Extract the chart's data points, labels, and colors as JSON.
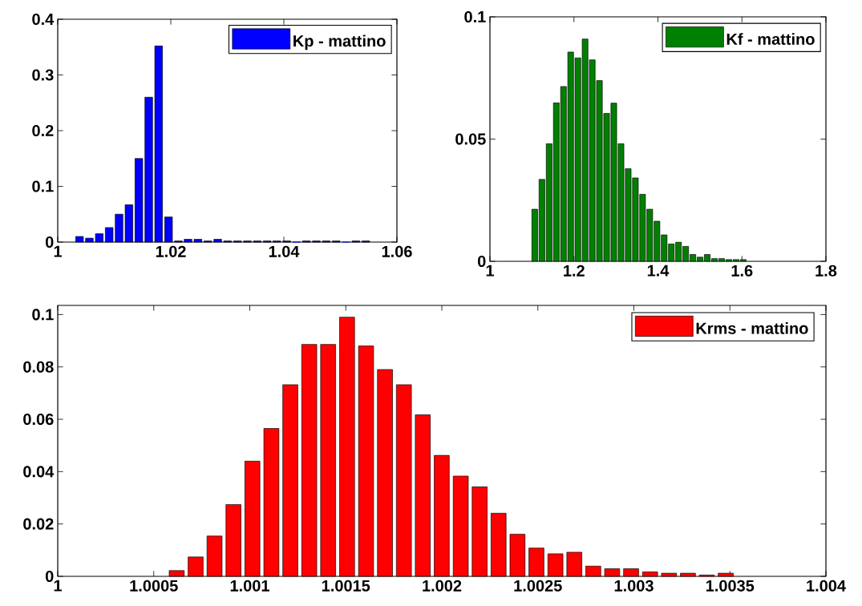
{
  "chart_data": [
    {
      "type": "histogram",
      "bins": [
        1.003,
        1.0047,
        1.0065,
        1.0082,
        1.01,
        1.0117,
        1.0135,
        1.0152,
        1.017,
        1.0187,
        1.0205,
        1.0222,
        1.0239,
        1.0257,
        1.0274,
        1.0292,
        1.0309,
        1.0327,
        1.0344,
        1.0362,
        1.0379,
        1.0396,
        1.0414,
        1.0431,
        1.0449,
        1.0466,
        1.0484,
        1.0501,
        1.0519,
        1.0536,
        1.0554
      ],
      "series": [
        {
          "name": "Kp - mattino",
          "color": "#0000ff",
          "values": [
            0.01,
            0.007,
            0.015,
            0.026,
            0.05,
            0.067,
            0.15,
            0.26,
            0.352,
            0.045,
            0.002,
            0.005,
            0.005,
            0.002,
            0.005,
            0.002,
            0.002,
            0.002,
            0.002,
            0.002,
            0.002,
            0.002,
            0,
            0.002,
            0.002,
            0.002,
            0.002,
            0,
            0.002,
            0.002
          ]
        }
      ],
      "xlim": [
        1,
        1.06
      ],
      "ylim": [
        0,
        0.4
      ],
      "xticks": [
        1,
        1.02,
        1.04,
        1.06
      ],
      "yticks": [
        0,
        0.1,
        0.2,
        0.3,
        0.4
      ],
      "legend": "top right"
    },
    {
      "type": "histogram",
      "bins": [
        1.0981,
        1.1152,
        1.1324,
        1.1495,
        1.1666,
        1.1837,
        1.2008,
        1.218,
        1.2351,
        1.2522,
        1.2693,
        1.2864,
        1.3035,
        1.3207,
        1.3378,
        1.3549,
        1.372,
        1.3891,
        1.4063,
        1.4234,
        1.4405,
        1.4576,
        1.4747,
        1.4919,
        1.509,
        1.5261,
        1.5432,
        1.5603,
        1.5774,
        1.5946,
        1.6117
      ],
      "series": [
        {
          "name": "Kf - mattino",
          "color": "#008000",
          "values": [
            0.0213,
            0.0335,
            0.0481,
            0.0648,
            0.0715,
            0.0856,
            0.0832,
            0.0909,
            0.0824,
            0.0739,
            0.0605,
            0.0647,
            0.0481,
            0.0379,
            0.0341,
            0.0274,
            0.0213,
            0.0164,
            0.0108,
            0.0071,
            0.0078,
            0.0061,
            0.0028,
            0.0017,
            0.0028,
            0.0011,
            0.0011,
            0.0007,
            0.0007,
            0.0007
          ]
        }
      ],
      "xlim": [
        1,
        1.8
      ],
      "ylim": [
        0,
        0.1
      ],
      "xticks": [
        1,
        1.2,
        1.4,
        1.6,
        1.8
      ],
      "yticks": [
        0,
        0.05,
        0.1
      ],
      "legend": "top right"
    },
    {
      "type": "histogram",
      "bins": [
        1.00057,
        1.000669,
        1.000767,
        1.000866,
        1.000964,
        1.001063,
        1.001162,
        1.00126,
        1.001359,
        1.001457,
        1.001556,
        1.001655,
        1.001753,
        1.001852,
        1.00195,
        1.002049,
        1.002148,
        1.002246,
        1.002345,
        1.002443,
        1.002542,
        1.002641,
        1.002739,
        1.002838,
        1.002936,
        1.003035,
        1.003134,
        1.003232,
        1.003331,
        1.003429,
        1.003528
      ],
      "series": [
        {
          "name": "Krms - mattino",
          "color": "#ff0000",
          "values": [
            0.0022,
            0.0074,
            0.0154,
            0.0274,
            0.044,
            0.0565,
            0.0732,
            0.0886,
            0.0886,
            0.099,
            0.088,
            0.079,
            0.0732,
            0.0617,
            0.0462,
            0.0383,
            0.0342,
            0.0241,
            0.0161,
            0.0108,
            0.0086,
            0.0092,
            0.0039,
            0.0029,
            0.0029,
            0.0017,
            0.0012,
            0.0012,
            0.0005,
            0.0012
          ]
        }
      ],
      "xlim": [
        1,
        1.004
      ],
      "ylim": [
        0,
        0.1035
      ],
      "xticks": [
        1,
        1.0005,
        1.001,
        1.0015,
        1.002,
        1.0025,
        1.003,
        1.0035,
        1.004
      ],
      "yticks": [
        0,
        0.02,
        0.04,
        0.06,
        0.08,
        0.1
      ],
      "legend": "top right"
    }
  ]
}
